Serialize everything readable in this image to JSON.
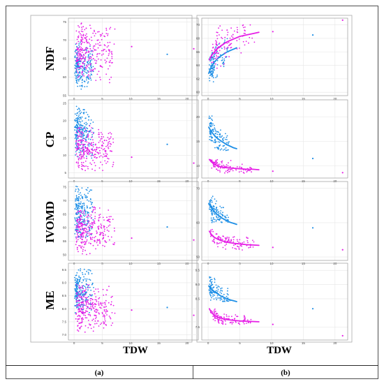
{
  "figure": {
    "row_labels": [
      "NDF",
      "CP",
      "IVOMD",
      "ME"
    ],
    "x_axis_label": "TDW",
    "column_captions": [
      "(a)",
      "(b)"
    ]
  },
  "colors": {
    "series_a": "#1e8fe6",
    "series_b": "#e61ee6",
    "frame": "#999999",
    "grid": "#e6e6e6"
  },
  "chart_data": [
    {
      "type": "scatter",
      "column": "(a)",
      "ylabel": "NDF",
      "xlabel": "TDW",
      "xlim": [
        -1,
        22
      ],
      "ylim": [
        55,
        76
      ],
      "xticks": [
        0,
        5,
        10,
        15,
        20
      ],
      "yticks": [
        55,
        60,
        65,
        70,
        75
      ],
      "series": [
        {
          "color": "#1e8fe6",
          "cloud": {
            "x_range": [
              0.1,
              3.5
            ],
            "y_range": [
              56,
              70
            ]
          },
          "outliers": [
            [
              16.5,
              66.2
            ]
          ]
        },
        {
          "color": "#e61ee6",
          "cloud": {
            "x_range": [
              0.3,
              7.5
            ],
            "y_range": [
              58,
              75
            ]
          },
          "outliers": [
            [
              10.2,
              68.3
            ],
            [
              21.2,
              67.7
            ]
          ]
        }
      ]
    },
    {
      "type": "scatter",
      "column": "(b)",
      "ylabel": "NDF",
      "xlabel": "TDW",
      "xlim": [
        -1,
        22
      ],
      "ylim": [
        59.5,
        71
      ],
      "xticks": [
        0,
        5,
        10,
        15,
        20
      ],
      "yticks": [
        60,
        62,
        64,
        66,
        68,
        70
      ],
      "series": [
        {
          "color": "#1e8fe6",
          "cloud": {
            "x_range": [
              0.1,
              3.5
            ],
            "y_range": [
              60,
              68
            ]
          },
          "outliers": [
            [
              16.5,
              68.5
            ]
          ],
          "fit": {
            "x": [
              0.1,
              0.5,
              1,
              1.5,
              2,
              2.5,
              3,
              3.5,
              4,
              4.5
            ],
            "y": [
              62.8,
              63.8,
              64.5,
              65.0,
              65.4,
              65.7,
              66.0,
              66.2,
              66.4,
              66.6
            ]
          }
        },
        {
          "color": "#e61ee6",
          "cloud": {
            "x_range": [
              0.3,
              7.5
            ],
            "y_range": [
              62,
              70
            ]
          },
          "outliers": [
            [
              10.2,
              69.0
            ],
            [
              21.2,
              70.7
            ]
          ],
          "fit": {
            "x": [
              0.2,
              0.5,
              1,
              1.5,
              2,
              3,
              4,
              5,
              6,
              7,
              8
            ],
            "y": [
              64.8,
              65.4,
              66.0,
              66.5,
              66.9,
              67.5,
              67.9,
              68.3,
              68.5,
              68.7,
              68.9
            ]
          }
        }
      ]
    },
    {
      "type": "scatter",
      "column": "(a)",
      "ylabel": "CP",
      "xlabel": "TDW",
      "xlim": [
        -1,
        22
      ],
      "ylim": [
        3.5,
        26
      ],
      "xticks": [
        0,
        5,
        10,
        15,
        20
      ],
      "yticks": [
        5,
        10,
        15,
        20,
        25
      ],
      "series": [
        {
          "color": "#1e8fe6",
          "cloud": {
            "x_range": [
              0.1,
              3.5
            ],
            "y_range": [
              9,
              25
            ]
          },
          "outliers": [
            [
              16.5,
              13.2
            ]
          ]
        },
        {
          "color": "#e61ee6",
          "cloud": {
            "x_range": [
              0.3,
              7.5
            ],
            "y_range": [
              5,
              19
            ]
          },
          "outliers": [
            [
              10.2,
              9.5
            ],
            [
              21.2,
              7.8
            ]
          ]
        }
      ]
    },
    {
      "type": "scatter",
      "column": "(b)",
      "ylabel": "CP",
      "xlabel": "TDW",
      "xlim": [
        -1,
        22
      ],
      "ylim": [
        7.5,
        23.5
      ],
      "xticks": [
        0,
        5,
        10,
        15,
        20
      ],
      "yticks": [
        10,
        15,
        20
      ],
      "series": [
        {
          "color": "#1e8fe6",
          "cloud": {
            "x_range": [
              0.1,
              3.5
            ],
            "y_range": [
              13,
              21
            ]
          },
          "outliers": [
            [
              16.5,
              11.5
            ]
          ],
          "fit": {
            "x": [
              0.1,
              0.5,
              1,
              1.5,
              2,
              2.5,
              3,
              3.5,
              4,
              4.5
            ],
            "y": [
              17.9,
              17.0,
              16.2,
              15.6,
              15.1,
              14.7,
              14.3,
              14.0,
              13.7,
              13.5
            ]
          }
        },
        {
          "color": "#e61ee6",
          "cloud": {
            "x_range": [
              0.3,
              7.5
            ],
            "y_range": [
              8.5,
              12
            ]
          },
          "outliers": [
            [
              10.2,
              8.9
            ],
            [
              21.2,
              8.6
            ]
          ],
          "fit": {
            "x": [
              0.2,
              0.5,
              1,
              1.5,
              2,
              3,
              4,
              5,
              6,
              7,
              8
            ],
            "y": [
              11.3,
              10.8,
              10.3,
              10.0,
              9.8,
              9.6,
              9.5,
              9.4,
              9.3,
              9.3,
              9.2
            ]
          }
        }
      ]
    },
    {
      "type": "scatter",
      "column": "(a)",
      "ylabel": "IVOMD",
      "xlabel": "TDW",
      "xlim": [
        -1,
        22
      ],
      "ylim": [
        48,
        77
      ],
      "xticks": [
        0,
        5,
        10,
        15,
        20
      ],
      "yticks": [
        50,
        55,
        60,
        65,
        70,
        75
      ],
      "series": [
        {
          "color": "#1e8fe6",
          "cloud": {
            "x_range": [
              0.1,
              3.5
            ],
            "y_range": [
              55,
              76
            ]
          },
          "outliers": [
            [
              16.5,
              60.3
            ]
          ]
        },
        {
          "color": "#e61ee6",
          "cloud": {
            "x_range": [
              0.3,
              7.5
            ],
            "y_range": [
              50,
              68
            ]
          },
          "outliers": [
            [
              10.2,
              56.2
            ],
            [
              21.2,
              55.5
            ]
          ]
        }
      ]
    },
    {
      "type": "scatter",
      "column": "(b)",
      "ylabel": "IVOMD",
      "xlabel": "TDW",
      "xlim": [
        -1,
        22
      ],
      "ylim": [
        49,
        72
      ],
      "xticks": [
        0,
        5,
        10,
        15,
        20
      ],
      "yticks": [
        50,
        60,
        70
      ],
      "series": [
        {
          "color": "#1e8fe6",
          "cloud": {
            "x_range": [
              0.1,
              3.5
            ],
            "y_range": [
              60,
              70
            ]
          },
          "outliers": [
            [
              16.5,
              58.5
            ]
          ],
          "fit": {
            "x": [
              0.1,
              0.5,
              1,
              1.5,
              2,
              2.5,
              3,
              3.5,
              4,
              4.5
            ],
            "y": [
              65.5,
              64.4,
              63.2,
              62.3,
              61.6,
              61.0,
              60.5,
              60.1,
              59.8,
              59.5
            ]
          }
        },
        {
          "color": "#e61ee6",
          "cloud": {
            "x_range": [
              0.3,
              7.5
            ],
            "y_range": [
              52,
              58
            ]
          },
          "outliers": [
            [
              10.2,
              52.8
            ],
            [
              21.2,
              52.1
            ]
          ],
          "fit": {
            "x": [
              0.2,
              0.5,
              1,
              1.5,
              2,
              3,
              4,
              5,
              6,
              7,
              8
            ],
            "y": [
              57.5,
              56.6,
              55.7,
              55.2,
              54.8,
              54.3,
              54.0,
              53.8,
              53.6,
              53.5,
              53.4
            ]
          }
        }
      ]
    },
    {
      "type": "scatter",
      "column": "(a)",
      "ylabel": "ME",
      "xlabel": "TDW",
      "xlim": [
        -1,
        22
      ],
      "ylim": [
        6.8,
        9.75
      ],
      "xticks": [
        0,
        5,
        10,
        15,
        20
      ],
      "yticks": [
        7.0,
        7.5,
        8.0,
        8.5,
        9.0,
        9.5
      ],
      "series": [
        {
          "color": "#1e8fe6",
          "cloud": {
            "x_range": [
              0.1,
              3.5
            ],
            "y_range": [
              7.7,
              9.6
            ]
          },
          "outliers": [
            [
              16.5,
              8.05
            ]
          ]
        },
        {
          "color": "#e61ee6",
          "cloud": {
            "x_range": [
              0.3,
              7.5
            ],
            "y_range": [
              7.0,
              9.0
            ]
          },
          "outliers": [
            [
              10.2,
              7.95
            ],
            [
              21.2,
              7.75
            ]
          ]
        }
      ]
    },
    {
      "type": "scatter",
      "column": "(b)",
      "ylabel": "ME",
      "xlabel": "TDW",
      "xlim": [
        -1,
        22
      ],
      "ylim": [
        7.05,
        9.75
      ],
      "xticks": [
        0,
        5,
        10,
        15,
        20
      ],
      "yticks": [
        7.5,
        8.5,
        9.0,
        9.5
      ],
      "series": [
        {
          "color": "#1e8fe6",
          "cloud": {
            "x_range": [
              0.1,
              3.5
            ],
            "y_range": [
              8.4,
              9.5
            ]
          },
          "outliers": [
            [
              16.5,
              8.15
            ]
          ],
          "fit": {
            "x": [
              0.1,
              0.5,
              1,
              1.5,
              2,
              2.5,
              3,
              3.5,
              4,
              4.5
            ],
            "y": [
              8.95,
              8.85,
              8.75,
              8.67,
              8.6,
              8.55,
              8.5,
              8.46,
              8.43,
              8.4
            ]
          }
        },
        {
          "color": "#e61ee6",
          "cloud": {
            "x_range": [
              0.3,
              7.5
            ],
            "y_range": [
              7.6,
              8.2
            ]
          },
          "outliers": [
            [
              10.2,
              7.6
            ],
            [
              21.2,
              7.2
            ]
          ],
          "fit": {
            "x": [
              0.2,
              0.5,
              1,
              1.5,
              2,
              3,
              4,
              5,
              6,
              7,
              8
            ],
            "y": [
              8.15,
              8.02,
              7.92,
              7.86,
              7.82,
              7.77,
              7.74,
              7.72,
              7.71,
              7.7,
              7.69
            ]
          }
        }
      ]
    }
  ]
}
